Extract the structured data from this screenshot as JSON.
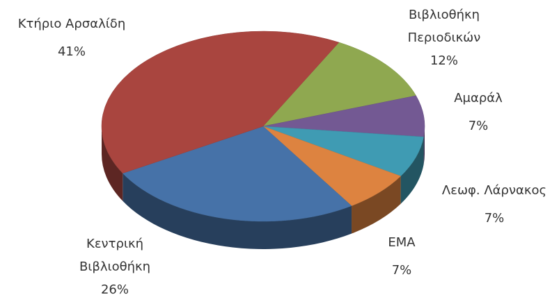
{
  "chart_data": {
    "type": "pie3d",
    "categories": [
      "Βιβλιοθήκη Περιοδικών",
      "Αμαράλ",
      "Λεωφ. Λάρνακος",
      "ΕΜΑ",
      "Κεντρική Βιβλιοθήκη",
      "Κτήριο Αρσαλίδη"
    ],
    "values": [
      12,
      7,
      7,
      7,
      26,
      41
    ],
    "value_labels": [
      "12%",
      "7%",
      "7%",
      "7%",
      "26%",
      "41%"
    ],
    "colors": [
      "#8fa850",
      "#735993",
      "#3f9bb3",
      "#dd8340",
      "#4672a8",
      "#a9453f"
    ]
  }
}
